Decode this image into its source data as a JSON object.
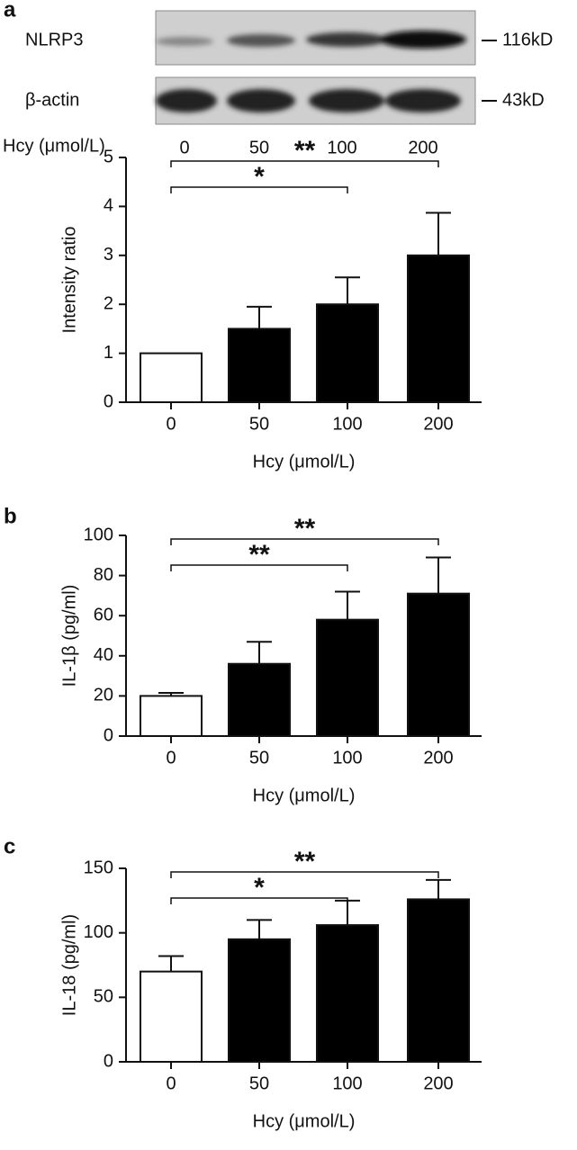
{
  "blot": {
    "panel_label": "a",
    "rows": [
      {
        "label": "NLRP3",
        "size": "116kD"
      },
      {
        "label": "β-actin",
        "size": "43kD"
      }
    ],
    "x_label": "Hcy (μmol/L)",
    "lanes": [
      "0",
      "50",
      "100",
      "200"
    ]
  },
  "chart_data": [
    {
      "type": "bar",
      "y_label": "Intensity ratio",
      "x_label": "Hcy (μmol/L)",
      "categories": [
        "0",
        "50",
        "100",
        "200"
      ],
      "values": [
        1,
        1.5,
        2,
        3
      ],
      "errors": [
        0,
        0.45,
        0.55,
        0.87
      ],
      "colors": [
        "#ffffff",
        "#000000",
        "#000000",
        "#000000"
      ],
      "ylim": [
        0,
        5
      ],
      "yticks": [
        0,
        1,
        2,
        3,
        4,
        5
      ],
      "significance": [
        {
          "label": "**",
          "from": 0,
          "to": 3
        },
        {
          "label": "*",
          "from": 0,
          "to": 2
        }
      ]
    },
    {
      "type": "bar",
      "panel_label": "b",
      "y_label": "IL-1β (pg/ml)",
      "x_label": "Hcy (μmol/L)",
      "categories": [
        "0",
        "50",
        "100",
        "200"
      ],
      "values": [
        20,
        36,
        58,
        71
      ],
      "errors": [
        1.5,
        11,
        14,
        18
      ],
      "colors": [
        "#ffffff",
        "#000000",
        "#000000",
        "#000000"
      ],
      "ylim": [
        0,
        100
      ],
      "yticks": [
        0,
        20,
        40,
        60,
        80,
        100
      ],
      "significance": [
        {
          "label": "**",
          "from": 0,
          "to": 3
        },
        {
          "label": "**",
          "from": 0,
          "to": 2
        }
      ]
    },
    {
      "type": "bar",
      "panel_label": "c",
      "y_label": "IL-18 (pg/ml)",
      "x_label": "Hcy (μmol/L)",
      "categories": [
        "0",
        "50",
        "100",
        "200"
      ],
      "values": [
        70,
        95,
        106,
        126
      ],
      "errors": [
        12,
        15,
        19,
        15
      ],
      "colors": [
        "#ffffff",
        "#000000",
        "#000000",
        "#000000"
      ],
      "ylim": [
        0,
        150
      ],
      "yticks": [
        0,
        50,
        100,
        150
      ],
      "significance": [
        {
          "label": "**",
          "from": 0,
          "to": 3
        },
        {
          "label": "*",
          "from": 0,
          "to": 2
        }
      ]
    }
  ]
}
